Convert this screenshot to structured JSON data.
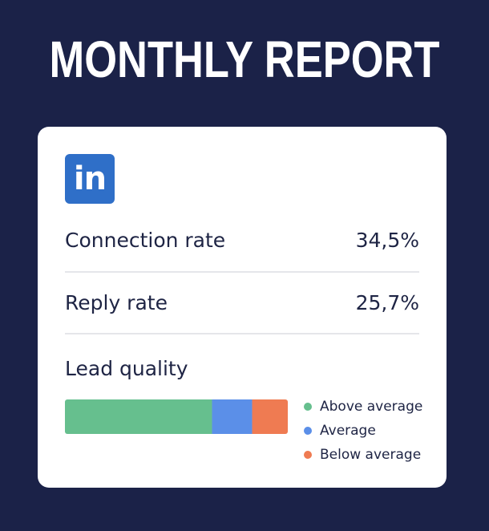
{
  "header": {
    "title": "MONTHLY REPORT"
  },
  "card": {
    "logo": {
      "icon": "linkedin-icon",
      "text": "in",
      "color": "#2f6fc8"
    },
    "metrics": [
      {
        "label": "Connection rate",
        "value": "34,5%"
      },
      {
        "label": "Reply rate",
        "value": "25,7%"
      }
    ]
  },
  "chart_data": {
    "type": "bar",
    "stacked": true,
    "orientation": "horizontal",
    "title": "Lead quality",
    "legend_position": "right",
    "series": [
      {
        "name": "Above average",
        "value": 66,
        "color": "#66bf8e"
      },
      {
        "name": "Average",
        "value": 18,
        "color": "#5b8fe8"
      },
      {
        "name": "Below average",
        "value": 16,
        "color": "#ef7b52"
      }
    ]
  },
  "colors": {
    "background": "#1b2248",
    "card": "#ffffff",
    "text": "#1e2444",
    "divider": "#e5e6ea"
  }
}
